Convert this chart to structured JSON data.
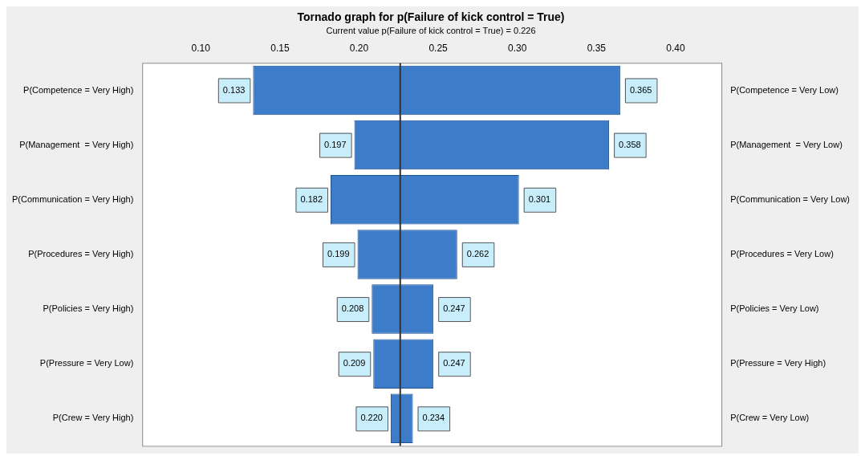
{
  "chart_data": {
    "type": "bar",
    "orientation": "horizontal",
    "title": "Tornado graph for p(Failure of kick control = True)",
    "subtitle": "Current value p(Failure of kick control = True) = 0.226",
    "categories": [
      "P(Competence = Very High)",
      "P(Management  = Very High)",
      "P(Communication = Very High)",
      "P(Procedures = Very High)",
      "P(Policies = Very High)",
      "P(Pressure = Very Low)",
      "P(Crew = Very High)"
    ],
    "y2_categories": [
      "P(Competence = Very Low)",
      "P(Management  = Very Low)",
      "P(Communication = Very Low)",
      "P(Procedures = Very Low)",
      "P(Policies = Very Low)",
      "P(Pressure = Very High)",
      "P(Crew = Very Low)"
    ],
    "base": [
      0.133,
      0.197,
      0.182,
      0.199,
      0.208,
      0.209,
      0.22
    ],
    "values": [
      0.232,
      0.161,
      0.119,
      0.063,
      0.039,
      0.038,
      0.014
    ],
    "color": "#3d7cc9",
    "xlim": [
      0.063,
      0.429
    ],
    "xticks": [
      {
        "value": 0.1,
        "label": "0.10"
      },
      {
        "value": 0.15,
        "label": "0.15"
      },
      {
        "value": 0.2,
        "label": "0.20"
      },
      {
        "value": 0.25,
        "label": "0.25"
      },
      {
        "value": 0.3,
        "label": "0.30"
      },
      {
        "value": 0.35,
        "label": "0.35"
      },
      {
        "value": 0.4,
        "label": "0.40"
      }
    ],
    "grid": false,
    "legend": false,
    "ref_lines": [
      {
        "axis": "x",
        "value": 0.226,
        "color": "#333333"
      }
    ],
    "annotations": [
      {
        "text": "0.133",
        "x": 0.133,
        "y": "P(Competence = Very High)"
      },
      {
        "text": "0.365",
        "x": 0.365,
        "y": "P(Competence = Very High)"
      },
      {
        "text": "0.197",
        "x": 0.197,
        "y": "P(Management  = Very High)"
      },
      {
        "text": "0.358",
        "x": 0.358,
        "y": "P(Management  = Very High)"
      },
      {
        "text": "0.182",
        "x": 0.182,
        "y": "P(Communication = Very High)"
      },
      {
        "text": "0.301",
        "x": 0.301,
        "y": "P(Communication = Very High)"
      },
      {
        "text": "0.199",
        "x": 0.199,
        "y": "P(Procedures = Very High)"
      },
      {
        "text": "0.262",
        "x": 0.262,
        "y": "P(Procedures = Very High)"
      },
      {
        "text": "0.208",
        "x": 0.208,
        "y": "P(Policies = Very High)"
      },
      {
        "text": "0.247",
        "x": 0.247,
        "y": "P(Policies = Very High)"
      },
      {
        "text": "0.209",
        "x": 0.209,
        "y": "P(Pressure = Very Low)"
      },
      {
        "text": "0.247",
        "x": 0.247,
        "y": "P(Pressure = Very Low)"
      },
      {
        "text": "0.220",
        "x": 0.22,
        "y": "P(Crew = Very High)"
      },
      {
        "text": "0.234",
        "x": 0.234,
        "y": "P(Crew = Very High)"
      }
    ]
  }
}
